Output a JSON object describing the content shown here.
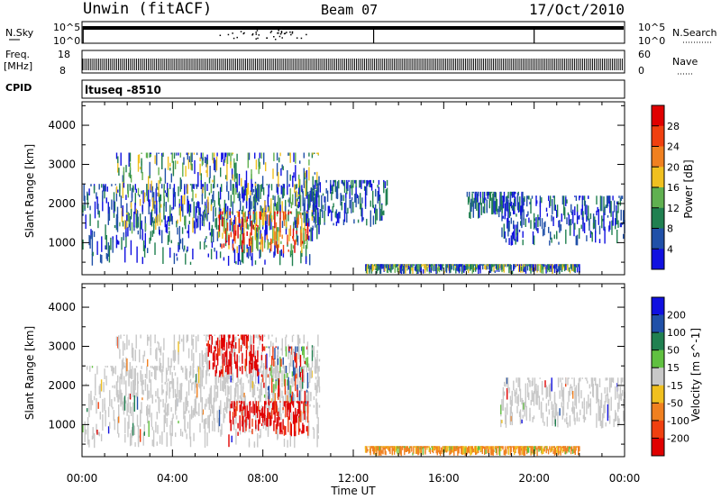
{
  "header": {
    "station": "Unwin (fitACF)",
    "beam": "Beam 07",
    "date": "17/Oct/2010"
  },
  "top_panels": {
    "nsky_label": "N.Sky",
    "nsky_ticks": [
      "10^5",
      "10^0"
    ],
    "nsearch_label": "N.Search",
    "nsearch_ticks": [
      "10^5",
      "10^0"
    ],
    "freq_label": "Freq.",
    "freq_unit": "[MHz]",
    "freq_ticks": [
      "18",
      "8"
    ],
    "nave_label": "Nave",
    "nave_ticks": [
      "60",
      "0"
    ],
    "cpid_label": "CPID",
    "cpid_value": "ltuseq -8510"
  },
  "colors": {
    "power": [
      "#1010e0",
      "#2050a8",
      "#208050",
      "#60b050",
      "#f0c020",
      "#f08020",
      "#f04010",
      "#e00000"
    ],
    "velocity": [
      "#e00000",
      "#f04010",
      "#f08020",
      "#f0c020",
      "#c8c8c8",
      "#60c040",
      "#208050",
      "#2050a8",
      "#1010e0"
    ]
  },
  "chart_data": [
    {
      "type": "heatmap",
      "panel": "power",
      "ylabel": "Slant Range [km]",
      "xlabel": "Time UT",
      "x_ticks": [
        "00:00",
        "04:00",
        "08:00",
        "12:00",
        "16:00",
        "20:00",
        "00:00"
      ],
      "xlim_hours": [
        0,
        24
      ],
      "y_ticks": [
        1000,
        2000,
        3000,
        4000
      ],
      "ylim": [
        180,
        4600
      ],
      "colorbar": {
        "label": "Power [dB]",
        "ticks": [
          "4",
          "8",
          "12",
          "16",
          "20",
          "24",
          "28"
        ],
        "range": [
          0,
          30
        ]
      },
      "regions": [
        {
          "t0": 0.0,
          "t1": 10.5,
          "r0": 400,
          "r1": 2500,
          "level": "low"
        },
        {
          "t0": 1.5,
          "t1": 10.5,
          "r0": 1200,
          "r1": 3300,
          "level": "low-mid"
        },
        {
          "t0": 6.0,
          "t1": 10.0,
          "r0": 700,
          "r1": 1800,
          "level": "high"
        },
        {
          "t0": 10.0,
          "t1": 13.5,
          "r0": 1400,
          "r1": 2600,
          "level": "low"
        },
        {
          "t0": 12.5,
          "t1": 22.0,
          "r0": 200,
          "r1": 450,
          "level": "low-mid"
        },
        {
          "t0": 18.5,
          "t1": 24.0,
          "r0": 900,
          "r1": 2200,
          "level": "low"
        },
        {
          "t0": 17.0,
          "t1": 19.5,
          "r0": 1600,
          "r1": 2300,
          "level": "low"
        }
      ]
    },
    {
      "type": "heatmap",
      "panel": "velocity",
      "ylabel": "Slant Range [km]",
      "xlabel": "Time UT",
      "x_ticks": [
        "00:00",
        "04:00",
        "08:00",
        "12:00",
        "16:00",
        "20:00",
        "00:00"
      ],
      "xlim_hours": [
        0,
        24
      ],
      "y_ticks": [
        1000,
        2000,
        3000,
        4000
      ],
      "ylim": [
        180,
        4600
      ],
      "colorbar": {
        "label": "Velocity [m s^-1]",
        "ticks": [
          "200",
          "100",
          "50",
          "15",
          "-15",
          "-50",
          "-100",
          "-200"
        ],
        "range": [
          -250,
          250
        ]
      },
      "regions": [
        {
          "t0": 0.0,
          "t1": 10.5,
          "r0": 400,
          "r1": 2500,
          "level": "ground"
        },
        {
          "t0": 1.5,
          "t1": 10.5,
          "r0": 1200,
          "r1": 3300,
          "level": "ground"
        },
        {
          "t0": 5.5,
          "t1": 8.0,
          "r0": 2200,
          "r1": 3300,
          "level": "neg-high"
        },
        {
          "t0": 6.5,
          "t1": 10.0,
          "r0": 700,
          "r1": 1600,
          "level": "neg-high"
        },
        {
          "t0": 8.0,
          "t1": 10.0,
          "r0": 1500,
          "r1": 3000,
          "level": "mixed"
        },
        {
          "t0": 12.5,
          "t1": 22.0,
          "r0": 200,
          "r1": 450,
          "level": "neg-low"
        },
        {
          "t0": 18.5,
          "t1": 24.0,
          "r0": 900,
          "r1": 2200,
          "level": "ground"
        }
      ]
    }
  ]
}
